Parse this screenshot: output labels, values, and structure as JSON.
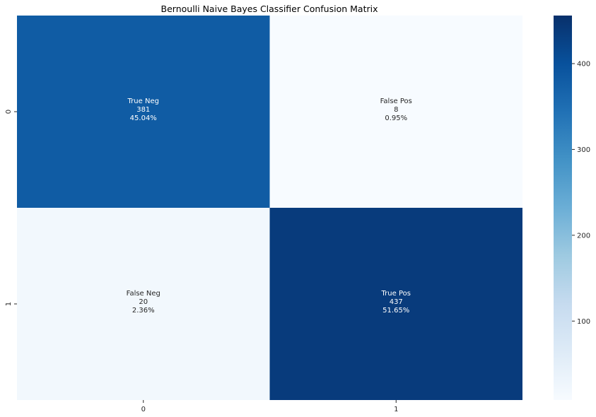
{
  "chart_data": {
    "type": "heatmap",
    "title": "Bernoulli Naive Bayes Classifier Confusion Matrix",
    "xlabel": "",
    "ylabel": "",
    "x_categories": [
      "0",
      "1"
    ],
    "y_categories": [
      "0",
      "1"
    ],
    "values": [
      [
        381,
        8
      ],
      [
        20,
        437
      ]
    ],
    "cell_labels": [
      [
        {
          "name": "True Neg",
          "count": "381",
          "percent": "45.04%"
        },
        {
          "name": "False Pos",
          "count": "8",
          "percent": "0.95%"
        }
      ],
      [
        {
          "name": "False Neg",
          "count": "20",
          "percent": "2.36%"
        },
        {
          "name": "True Pos",
          "count": "437",
          "percent": "51.65%"
        }
      ]
    ],
    "colormap": "Blues",
    "colorbar": {
      "range": [
        8,
        456
      ],
      "ticks": [
        100,
        200,
        300,
        400
      ],
      "colors": [
        "#f7fbff",
        "#deebf7",
        "#c6dbef",
        "#9ecae1",
        "#6baed6",
        "#4292c6",
        "#2171b5",
        "#08519c",
        "#08306b"
      ]
    },
    "grid": false,
    "legend": "none"
  }
}
